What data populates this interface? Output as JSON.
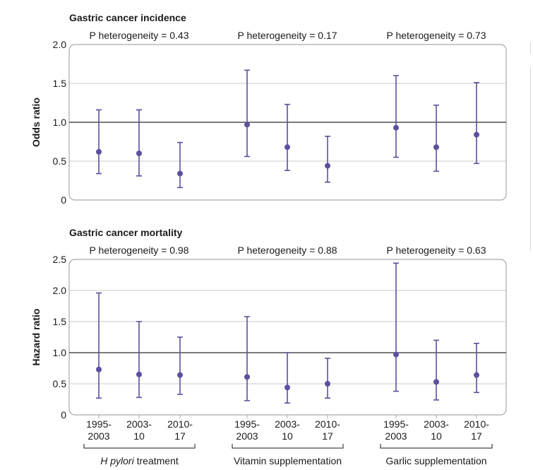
{
  "colors": {
    "mark": "#5d4f9e",
    "frame": "#a9a9a9",
    "grid": "#c8c8c8",
    "ref": "#2b2b2b",
    "text": "#1a1a1a"
  },
  "chart_data": [
    {
      "type": "scatter",
      "title": "Gastric cancer incidence",
      "ylabel": "Odds ratio",
      "ylim": [
        0,
        2.0
      ],
      "yticks": [
        "0",
        "0.5",
        "1.0",
        "1.5",
        "2.0"
      ],
      "reference_line": 1.0,
      "grid": true,
      "heterogeneity": [
        "P heterogeneity = 0.43",
        "P heterogeneity = 0.17",
        "P heterogeneity = 0.73"
      ],
      "groups": [
        {
          "points": [
            {
              "est": 0.62,
              "lo": 0.34,
              "hi": 1.16
            },
            {
              "est": 0.6,
              "lo": 0.31,
              "hi": 1.16
            },
            {
              "est": 0.34,
              "lo": 0.16,
              "hi": 0.74
            }
          ]
        },
        {
          "points": [
            {
              "est": 0.97,
              "lo": 0.56,
              "hi": 1.67
            },
            {
              "est": 0.68,
              "lo": 0.38,
              "hi": 1.23
            },
            {
              "est": 0.44,
              "lo": 0.23,
              "hi": 0.82
            }
          ]
        },
        {
          "points": [
            {
              "est": 0.93,
              "lo": 0.55,
              "hi": 1.6
            },
            {
              "est": 0.68,
              "lo": 0.37,
              "hi": 1.22
            },
            {
              "est": 0.84,
              "lo": 0.47,
              "hi": 1.51
            }
          ]
        }
      ]
    },
    {
      "type": "scatter",
      "title": "Gastric cancer mortality",
      "ylabel": "Hazard ratio",
      "ylim": [
        0,
        2.5
      ],
      "yticks": [
        "0",
        "0.5",
        "1.0",
        "1.5",
        "2.0",
        "2.5"
      ],
      "reference_line": 1.0,
      "grid": true,
      "heterogeneity": [
        "P heterogeneity = 0.98",
        "P heterogeneity = 0.88",
        "P heterogeneity = 0.63"
      ],
      "groups": [
        {
          "points": [
            {
              "est": 0.73,
              "lo": 0.27,
              "hi": 1.96
            },
            {
              "est": 0.65,
              "lo": 0.28,
              "hi": 1.5
            },
            {
              "est": 0.64,
              "lo": 0.33,
              "hi": 1.25
            }
          ]
        },
        {
          "points": [
            {
              "est": 0.61,
              "lo": 0.23,
              "hi": 1.58
            },
            {
              "est": 0.44,
              "lo": 0.19,
              "hi": 1.0
            },
            {
              "est": 0.5,
              "lo": 0.27,
              "hi": 0.91
            }
          ]
        },
        {
          "points": [
            {
              "est": 0.97,
              "lo": 0.38,
              "hi": 2.44
            },
            {
              "est": 0.53,
              "lo": 0.24,
              "hi": 1.2
            },
            {
              "est": 0.64,
              "lo": 0.36,
              "hi": 1.15
            }
          ]
        }
      ]
    }
  ],
  "x_categories": [
    {
      "line1": "1995-",
      "line2": "2003"
    },
    {
      "line1": "2003-",
      "line2": "10"
    },
    {
      "line1": "2010-",
      "line2": "17"
    }
  ],
  "group_labels": [
    {
      "italic": "H pylori",
      "rest": " treatment"
    },
    {
      "italic": "",
      "rest": "Vitamin supplementation"
    },
    {
      "italic": "",
      "rest": "Garlic supplementation"
    }
  ]
}
